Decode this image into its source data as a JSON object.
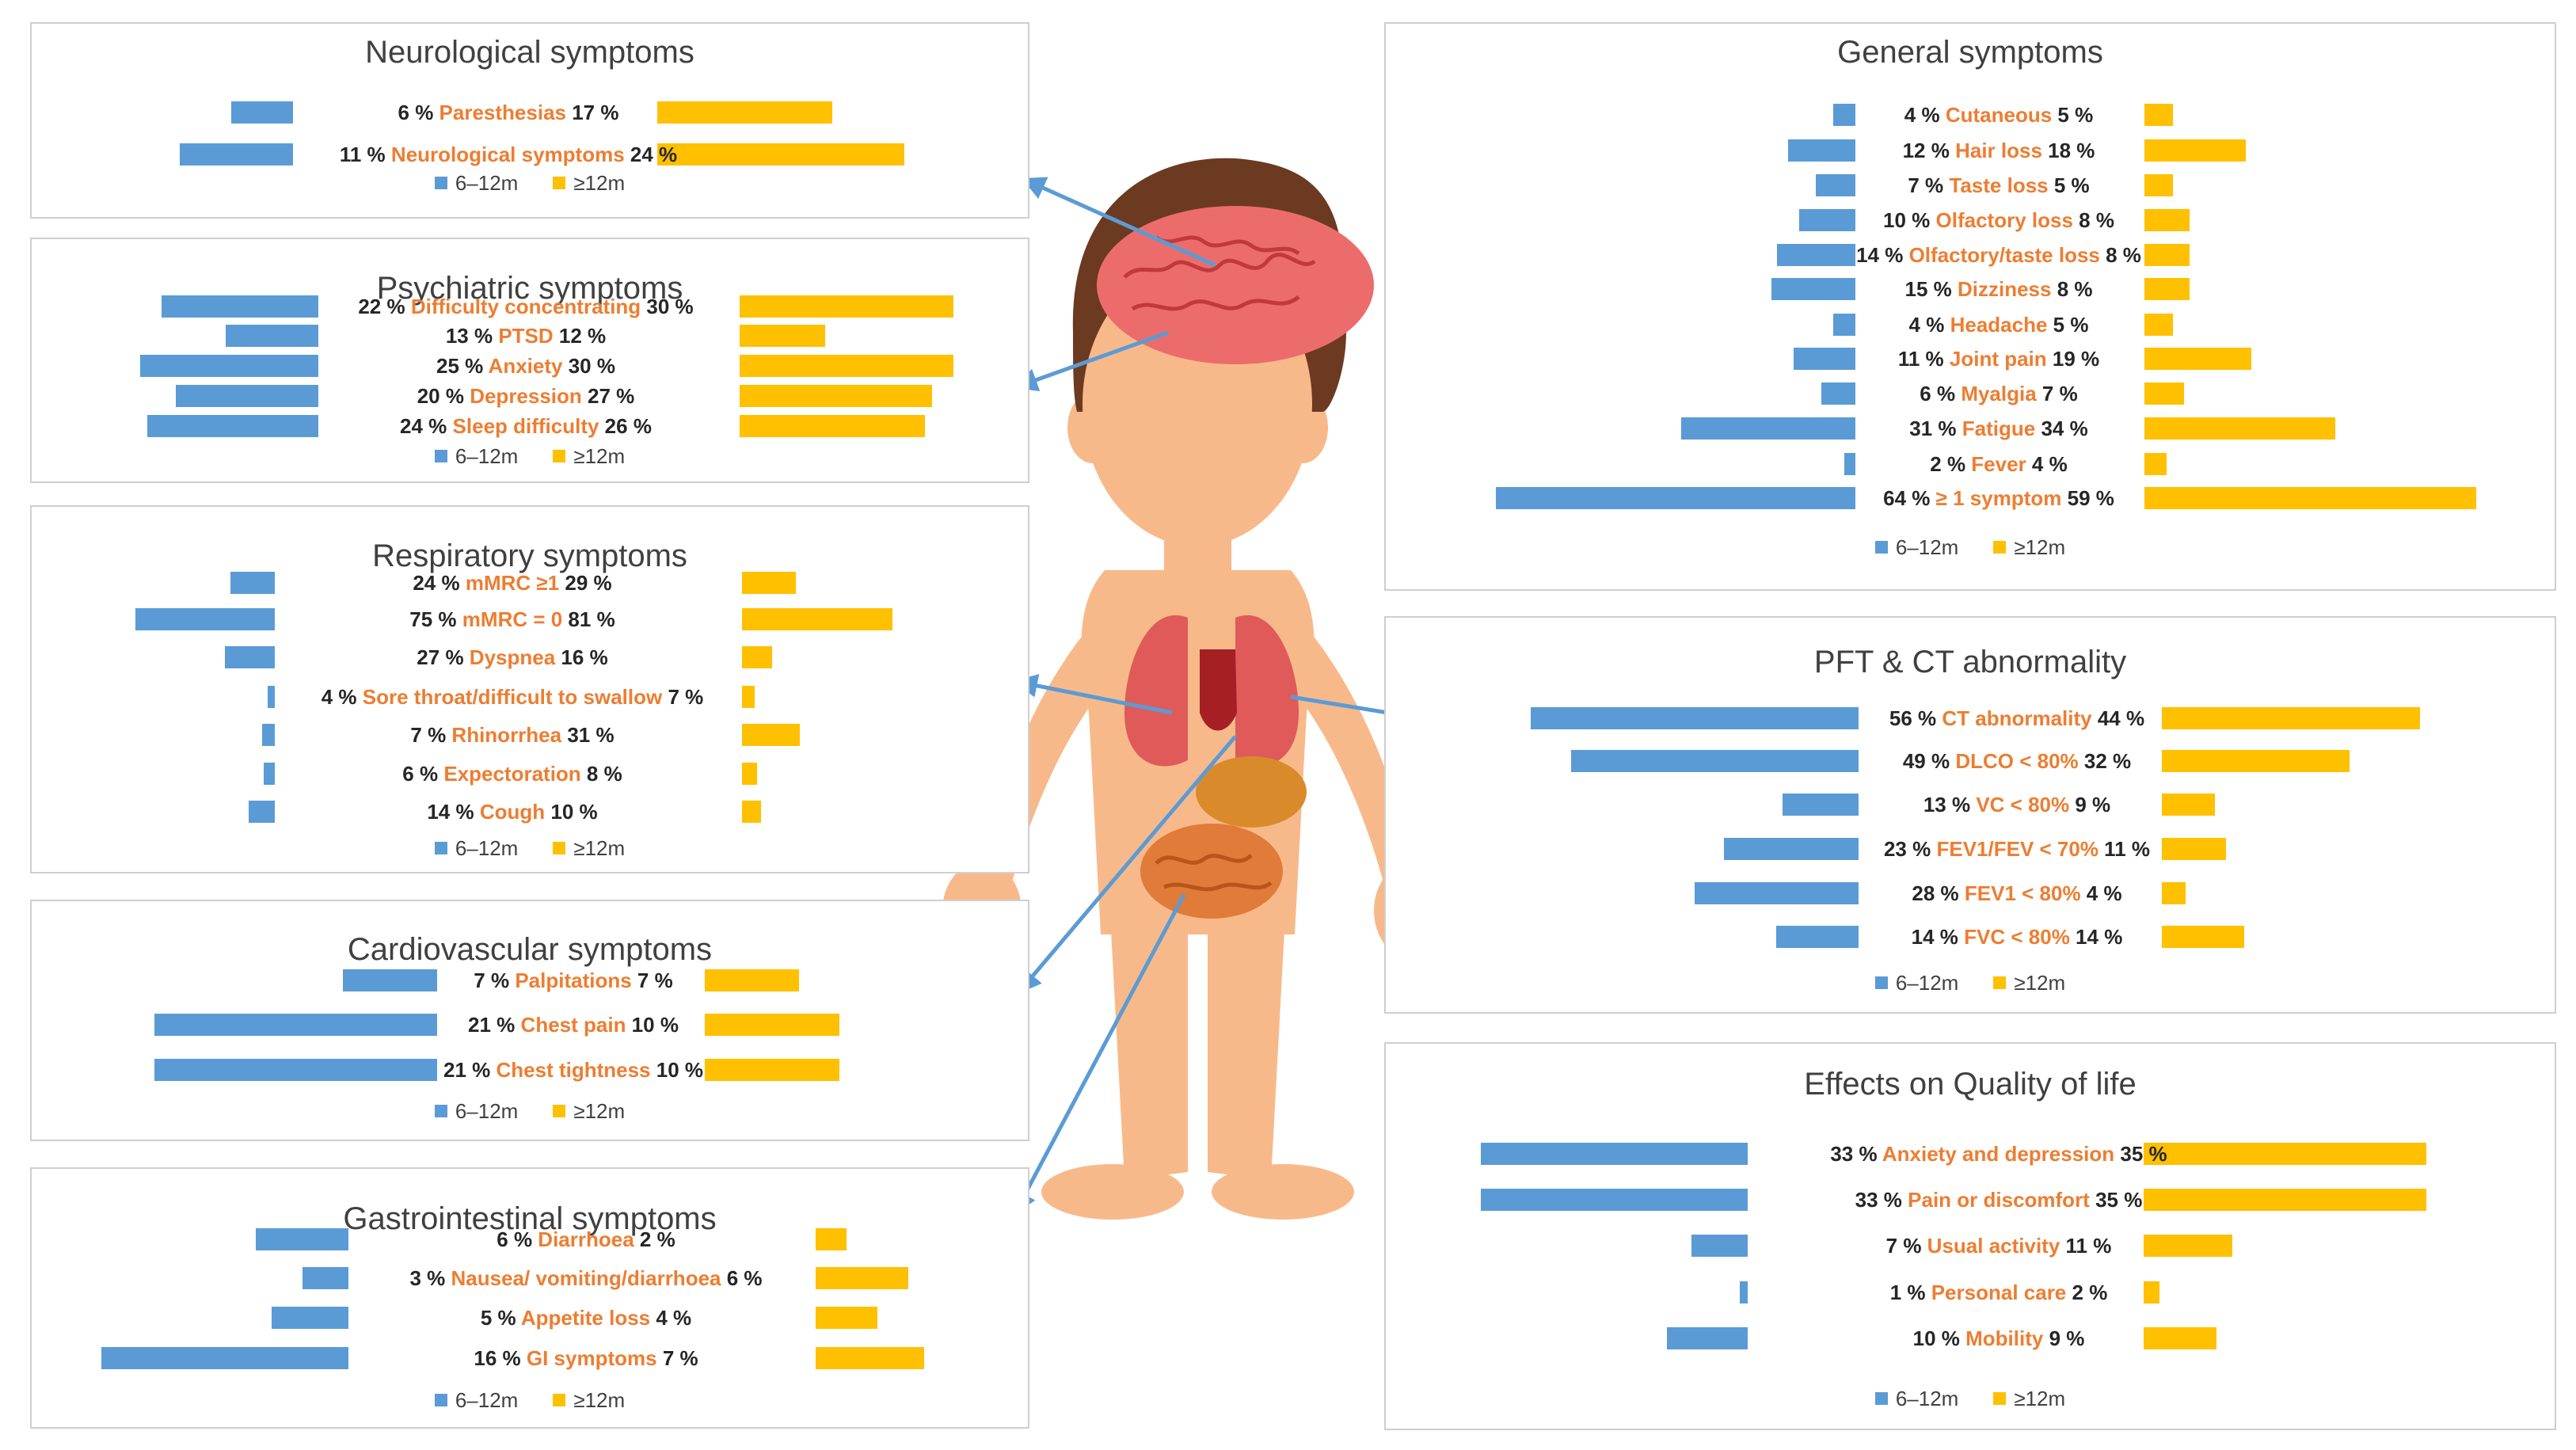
{
  "legend": {
    "series1": "6–12m",
    "series2": "≥12m"
  },
  "colors": {
    "series1": "#5b9bd5",
    "series2": "#ffc000",
    "category": "#ed7d31",
    "arrow": "#5b9bd5"
  },
  "chart_data": [
    {
      "id": "neuro",
      "type": "bar",
      "title": "Neurological symptoms",
      "categories": [
        "Paresthesias",
        "Neurological symptoms"
      ],
      "series": [
        {
          "name": "6–12m",
          "values": [
            6,
            11
          ]
        },
        {
          "name": "≥12m",
          "values": [
            17,
            24
          ]
        }
      ]
    },
    {
      "id": "psych",
      "type": "bar",
      "title": "Psychiatric symptoms",
      "categories": [
        "Difficulty concentrating",
        "PTSD",
        "Anxiety",
        "Depression",
        "Sleep difficulty"
      ],
      "series": [
        {
          "name": "6–12m",
          "values": [
            22,
            13,
            25,
            20,
            24
          ]
        },
        {
          "name": "≥12m",
          "values": [
            30,
            12,
            30,
            27,
            26
          ]
        }
      ]
    },
    {
      "id": "resp",
      "type": "bar",
      "title": "Respiratory symptoms",
      "categories": [
        "mMRC ≥1",
        "mMRC = 0",
        "Dyspnea",
        "Sore throat/difficult to swallow",
        "Rhinorrhea",
        "Expectoration",
        "Cough"
      ],
      "series": [
        {
          "name": "6–12m",
          "values": [
            24,
            75,
            27,
            4,
            7,
            6,
            14
          ]
        },
        {
          "name": "≥12m",
          "values": [
            29,
            81,
            16,
            7,
            31,
            8,
            10
          ]
        }
      ]
    },
    {
      "id": "cardio",
      "type": "bar",
      "title": "Cardiovascular symptoms",
      "categories": [
        "Palpitations",
        "Chest pain",
        "Chest tightness"
      ],
      "series": [
        {
          "name": "6–12m",
          "values": [
            7,
            21,
            21
          ]
        },
        {
          "name": "≥12m",
          "values": [
            7,
            10,
            10
          ]
        }
      ]
    },
    {
      "id": "gi",
      "type": "bar",
      "title": "Gastrointestinal symptoms",
      "categories": [
        "Diarrhoea",
        "Nausea/ vomiting/diarrhoea",
        "Appetite loss",
        "GI symptoms"
      ],
      "series": [
        {
          "name": "6–12m",
          "values": [
            6,
            3,
            5,
            16
          ]
        },
        {
          "name": "≥12m",
          "values": [
            2,
            6,
            4,
            7
          ]
        }
      ]
    },
    {
      "id": "general",
      "type": "bar",
      "title": "General symptoms",
      "categories": [
        "Cutaneous",
        "Hair loss",
        "Taste loss",
        "Olfactory loss",
        "Olfactory/taste loss",
        "Dizziness",
        "Headache",
        "Joint pain",
        "Myalgia",
        "Fatigue",
        "Fever",
        "≥ 1 symptom"
      ],
      "series": [
        {
          "name": "6–12m",
          "values": [
            4,
            12,
            7,
            10,
            14,
            15,
            4,
            11,
            6,
            31,
            2,
            64
          ]
        },
        {
          "name": "≥12m",
          "values": [
            5,
            18,
            5,
            8,
            8,
            8,
            5,
            19,
            7,
            34,
            4,
            59
          ]
        }
      ]
    },
    {
      "id": "pft",
      "type": "bar",
      "title": "PFT & CT abnormality",
      "categories": [
        "CT abnormality",
        "DLCO < 80%",
        "VC < 80%",
        "FEV1/FEV < 70%",
        "FEV1 < 80%",
        "FVC < 80%"
      ],
      "series": [
        {
          "name": "6–12m",
          "values": [
            56,
            49,
            13,
            23,
            28,
            14
          ]
        },
        {
          "name": "≥12m",
          "values": [
            44,
            32,
            9,
            11,
            4,
            14
          ]
        }
      ]
    },
    {
      "id": "qol",
      "type": "bar",
      "title": "Effects on Quality of life",
      "categories": [
        "Anxiety and depression",
        "Pain or discomfort",
        "Usual activity",
        "Personal care",
        "Mobility"
      ],
      "series": [
        {
          "name": "6–12m",
          "values": [
            33,
            33,
            7,
            1,
            10
          ]
        },
        {
          "name": "≥12m",
          "values": [
            35,
            35,
            11,
            2,
            9
          ]
        }
      ]
    }
  ]
}
